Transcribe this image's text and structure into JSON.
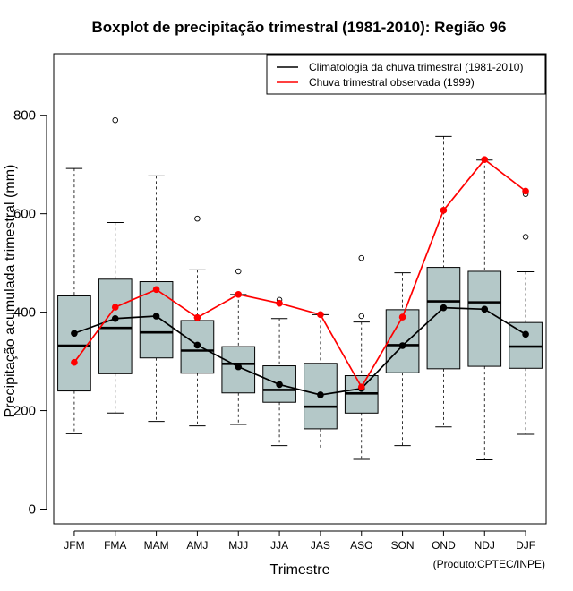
{
  "chart_data": {
    "type": "boxplot",
    "title": "Boxplot de precipitação trimestral (1981-2010): Região 96",
    "xlabel": "Trimestre",
    "ylabel": "Precipitação acumulada trimestral (mm)",
    "credit": "(Produto:CPTEC/INPE)",
    "ylim": [
      -30,
      925
    ],
    "yticks": [
      0,
      200,
      400,
      600,
      800
    ],
    "categories": [
      "JFM",
      "FMA",
      "MAM",
      "AMJ",
      "MJJ",
      "JJA",
      "JAS",
      "ASO",
      "SON",
      "OND",
      "NDJ",
      "DJF"
    ],
    "boxes": [
      {
        "min": 153,
        "q1": 240,
        "median": 332,
        "q3": 433,
        "max": 692,
        "outliers": []
      },
      {
        "min": 195,
        "q1": 275,
        "median": 368,
        "q3": 467,
        "max": 582,
        "outliers": [
          790
        ]
      },
      {
        "min": 178,
        "q1": 307,
        "median": 359,
        "q3": 462,
        "max": 677,
        "outliers": []
      },
      {
        "min": 169,
        "q1": 276,
        "median": 322,
        "q3": 383,
        "max": 486,
        "outliers": [
          590
        ]
      },
      {
        "min": 172,
        "q1": 236,
        "median": 295,
        "q3": 330,
        "max": 436,
        "outliers": [
          483
        ]
      },
      {
        "min": 129,
        "q1": 217,
        "median": 242,
        "q3": 291,
        "max": 387,
        "outliers": [
          425,
          418
        ]
      },
      {
        "min": 120,
        "q1": 163,
        "median": 208,
        "q3": 296,
        "max": 395,
        "outliers": []
      },
      {
        "min": 101,
        "q1": 195,
        "median": 235,
        "q3": 271,
        "max": 380,
        "outliers": [
          510,
          392
        ]
      },
      {
        "min": 129,
        "q1": 277,
        "median": 333,
        "q3": 405,
        "max": 480,
        "outliers": []
      },
      {
        "min": 167,
        "q1": 285,
        "median": 422,
        "q3": 491,
        "max": 757,
        "outliers": []
      },
      {
        "min": 100,
        "q1": 290,
        "median": 420,
        "q3": 483,
        "max": 709,
        "outliers": []
      },
      {
        "min": 152,
        "q1": 286,
        "median": 330,
        "q3": 379,
        "max": 482,
        "outliers": [
          640,
          553
        ]
      }
    ],
    "series": [
      {
        "name": "Climatologia da chuva trimestral (1981-2010)",
        "color": "#000000",
        "values": [
          357,
          387,
          392,
          333,
          289,
          253,
          232,
          245,
          332,
          409,
          406,
          355
        ]
      },
      {
        "name": "Chuva trimestral observada (1999)",
        "color": "#ff0000",
        "values": [
          298,
          410,
          446,
          389,
          436,
          418,
          395,
          248,
          390,
          607,
          710,
          646
        ]
      }
    ],
    "box_fill": "#b4c8c8",
    "legend_position": "top-right"
  }
}
